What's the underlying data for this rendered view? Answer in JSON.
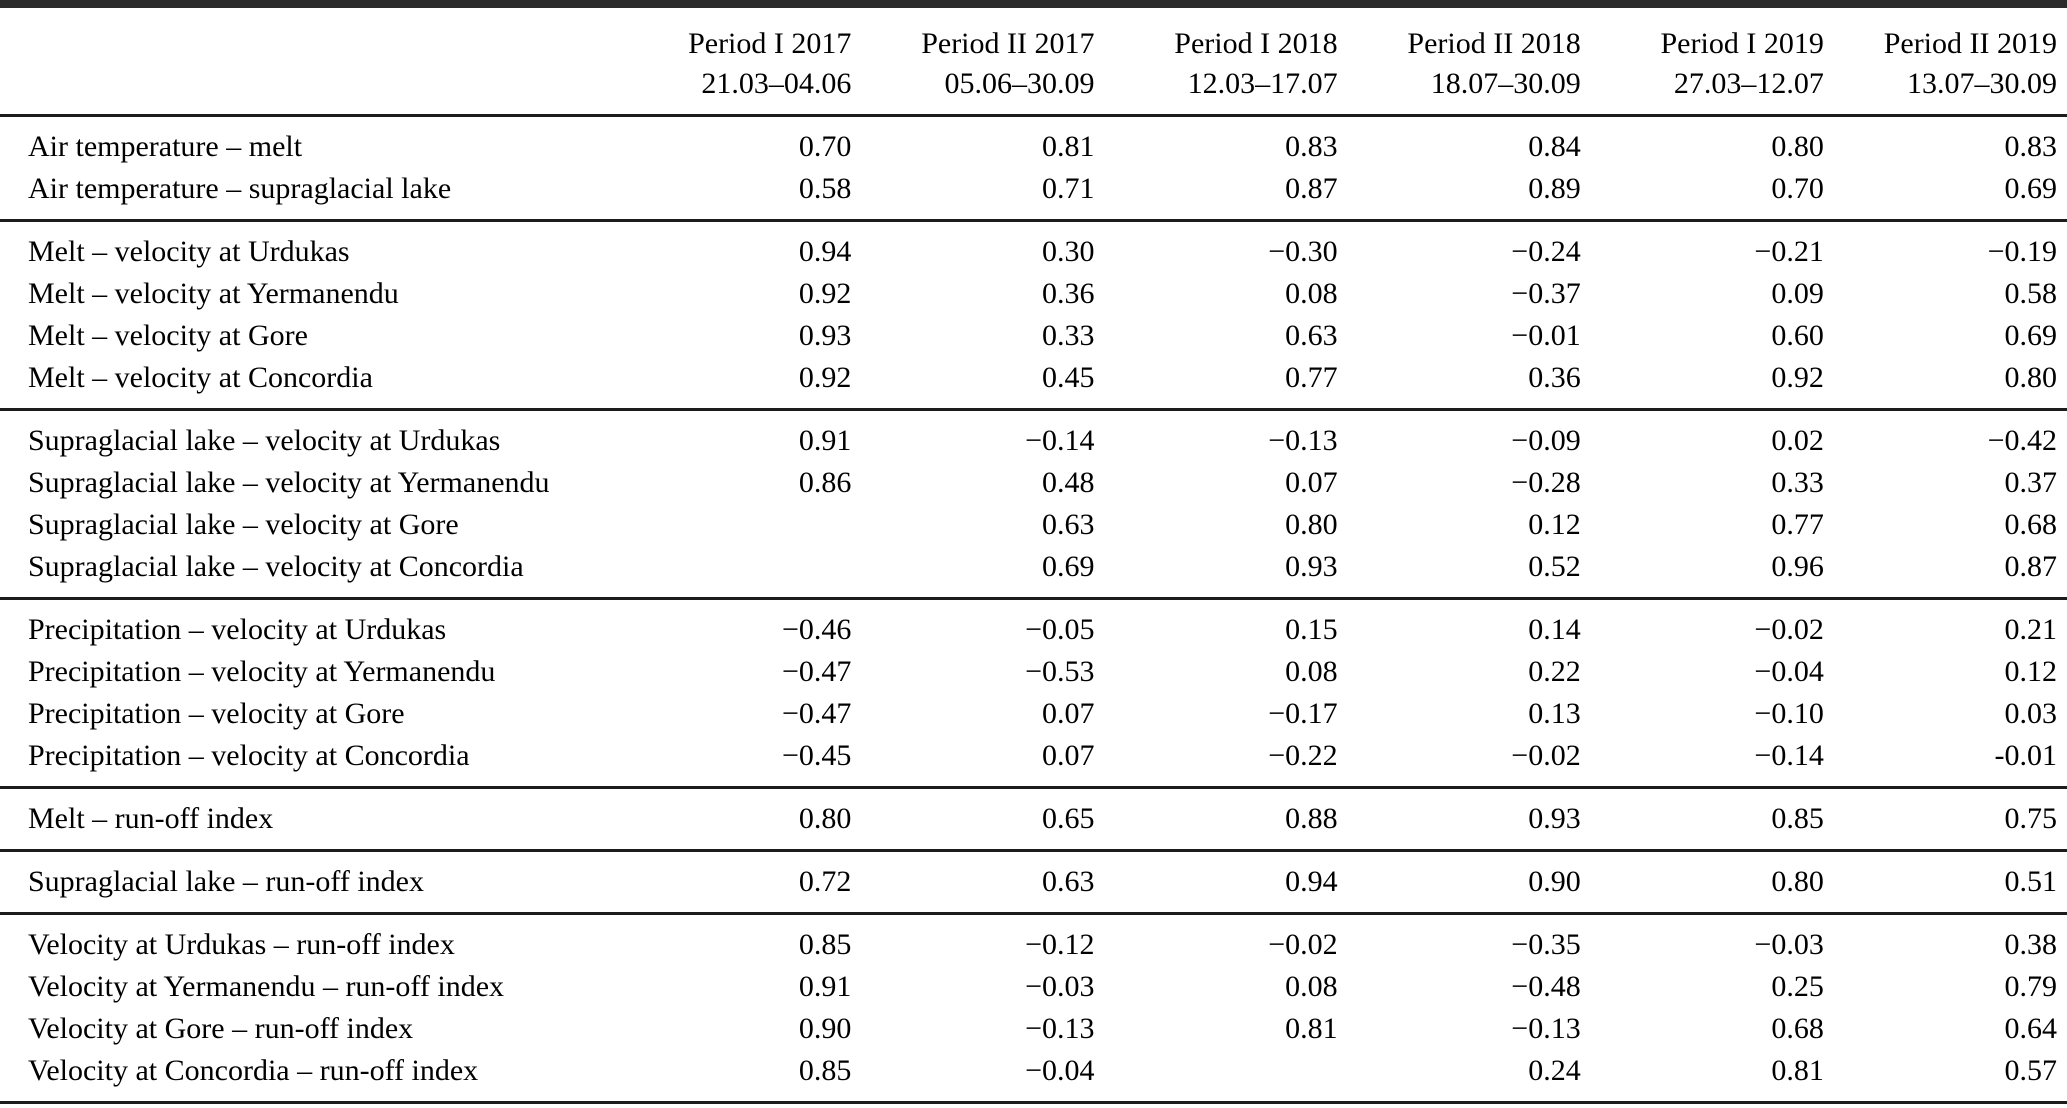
{
  "table": {
    "columns": [
      {
        "period": "Period I 2017",
        "dates": "21.03–04.06"
      },
      {
        "period": "Period II 2017",
        "dates": "05.06–30.09"
      },
      {
        "period": "Period I 2018",
        "dates": "12.03–17.07"
      },
      {
        "period": "Period II 2018",
        "dates": "18.07–30.09"
      },
      {
        "period": "Period I 2019",
        "dates": "27.03–12.07"
      },
      {
        "period": "Period II 2019",
        "dates": "13.07–30.09"
      }
    ],
    "groups": [
      {
        "rows": [
          {
            "label": "Air temperature – melt",
            "values": [
              "0.70",
              "0.81",
              "0.83",
              "0.84",
              "0.80",
              "0.83"
            ]
          },
          {
            "label": "Air temperature – supraglacial lake",
            "values": [
              "0.58",
              "0.71",
              "0.87",
              "0.89",
              "0.70",
              "0.69"
            ]
          }
        ]
      },
      {
        "rows": [
          {
            "label": "Melt – velocity at Urdukas",
            "values": [
              "0.94",
              "0.30",
              "−0.30",
              "−0.24",
              "−0.21",
              "−0.19"
            ]
          },
          {
            "label": "Melt – velocity at Yermanendu",
            "values": [
              "0.92",
              "0.36",
              "0.08",
              "−0.37",
              "0.09",
              "0.58"
            ]
          },
          {
            "label": "Melt – velocity at Gore",
            "values": [
              "0.93",
              "0.33",
              "0.63",
              "−0.01",
              "0.60",
              "0.69"
            ]
          },
          {
            "label": "Melt – velocity at Concordia",
            "values": [
              "0.92",
              "0.45",
              "0.77",
              "0.36",
              "0.92",
              "0.80"
            ]
          }
        ]
      },
      {
        "rows": [
          {
            "label": "Supraglacial lake – velocity at Urdukas",
            "values": [
              "0.91",
              "−0.14",
              "−0.13",
              "−0.09",
              "0.02",
              "−0.42"
            ]
          },
          {
            "label": "Supraglacial lake – velocity at Yermanendu",
            "values": [
              "0.86",
              "0.48",
              "0.07",
              "−0.28",
              "0.33",
              "0.37"
            ]
          },
          {
            "label": "Supraglacial lake – velocity at Gore",
            "values": [
              "",
              "0.63",
              "0.80",
              "0.12",
              "0.77",
              "0.68"
            ]
          },
          {
            "label": "Supraglacial lake – velocity at Concordia",
            "values": [
              "",
              "0.69",
              "0.93",
              "0.52",
              "0.96",
              "0.87"
            ]
          }
        ]
      },
      {
        "rows": [
          {
            "label": "Precipitation – velocity at Urdukas",
            "values": [
              "−0.46",
              "−0.05",
              "0.15",
              "0.14",
              "−0.02",
              "0.21"
            ]
          },
          {
            "label": "Precipitation – velocity at Yermanendu",
            "values": [
              "−0.47",
              "−0.53",
              "0.08",
              "0.22",
              "−0.04",
              "0.12"
            ]
          },
          {
            "label": "Precipitation – velocity at Gore",
            "values": [
              "−0.47",
              "0.07",
              "−0.17",
              "0.13",
              "−0.10",
              "0.03"
            ]
          },
          {
            "label": "Precipitation – velocity at Concordia",
            "values": [
              "−0.45",
              "0.07",
              "−0.22",
              "−0.02",
              "−0.14",
              "-0.01"
            ]
          }
        ]
      },
      {
        "rows": [
          {
            "label": "Melt – run-off index",
            "values": [
              "0.80",
              "0.65",
              "0.88",
              "0.93",
              "0.85",
              "0.75"
            ]
          }
        ]
      },
      {
        "rows": [
          {
            "label": "Supraglacial lake – run-off index",
            "values": [
              "0.72",
              "0.63",
              "0.94",
              "0.90",
              "0.80",
              "0.51"
            ]
          }
        ]
      },
      {
        "rows": [
          {
            "label": "Velocity at Urdukas – run-off index",
            "values": [
              "0.85",
              "−0.12",
              "−0.02",
              "−0.35",
              "−0.03",
              "0.38"
            ]
          },
          {
            "label": "Velocity at Yermanendu – run-off index",
            "values": [
              "0.91",
              "−0.03",
              "0.08",
              "−0.48",
              "0.25",
              "0.79"
            ]
          },
          {
            "label": "Velocity at Gore – run-off index",
            "values": [
              "0.90",
              "−0.13",
              "0.81",
              "−0.13",
              "0.68",
              "0.64"
            ]
          },
          {
            "label": "Velocity at Concordia – run-off index",
            "values": [
              "0.85",
              "−0.04",
              "",
              "0.24",
              "0.81",
              "0.57"
            ]
          }
        ]
      }
    ]
  }
}
